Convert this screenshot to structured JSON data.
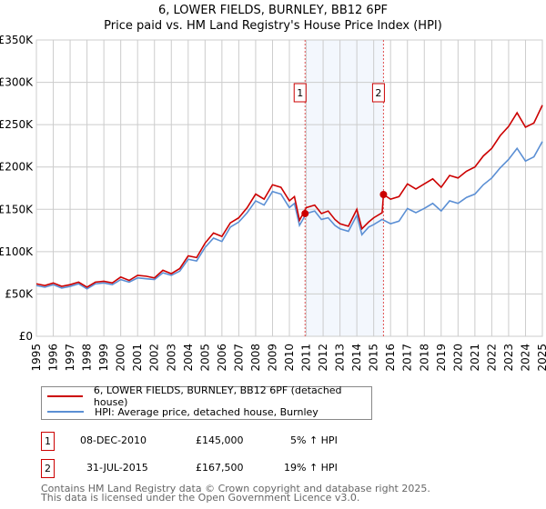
{
  "chart_data": {
    "type": "line",
    "title": "6, LOWER FIELDS, BURNLEY, BB12 6PF",
    "subtitle": "Price paid vs. HM Land Registry's House Price Index (HPI)",
    "xlim": [
      1995,
      2025
    ],
    "ylim": [
      0,
      350000
    ],
    "yticks": [
      {
        "v": 0,
        "label": "£0"
      },
      {
        "v": 50000,
        "label": "£50K"
      },
      {
        "v": 100000,
        "label": "£100K"
      },
      {
        "v": 150000,
        "label": "£150K"
      },
      {
        "v": 200000,
        "label": "£200K"
      },
      {
        "v": 250000,
        "label": "£250K"
      },
      {
        "v": 300000,
        "label": "£300K"
      },
      {
        "v": 350000,
        "label": "£350K"
      }
    ],
    "xticks": [
      "1995",
      "1996",
      "1997",
      "1998",
      "1999",
      "2000",
      "2001",
      "2002",
      "2003",
      "2004",
      "2005",
      "2006",
      "2007",
      "2008",
      "2009",
      "2010",
      "2011",
      "2012",
      "2013",
      "2014",
      "2015",
      "2016",
      "2017",
      "2018",
      "2019",
      "2020",
      "2021",
      "2022",
      "2023",
      "2024",
      "2025"
    ],
    "grid": true,
    "shaded_range": [
      2010.93,
      2015.58
    ],
    "series": [
      {
        "name": "6, LOWER FIELDS, BURNLEY, BB12 6PF (detached house)",
        "color": "#cc0000",
        "points": [
          [
            1995,
            62000
          ],
          [
            1995.5,
            60000
          ],
          [
            1996,
            63000
          ],
          [
            1996.5,
            59000
          ],
          [
            1997,
            61000
          ],
          [
            1997.5,
            64000
          ],
          [
            1998,
            58000
          ],
          [
            1998.5,
            64000
          ],
          [
            1999,
            65000
          ],
          [
            1999.5,
            63000
          ],
          [
            2000,
            70000
          ],
          [
            2000.5,
            66000
          ],
          [
            2001,
            72000
          ],
          [
            2001.5,
            71000
          ],
          [
            2002,
            69000
          ],
          [
            2002.5,
            78000
          ],
          [
            2003,
            74000
          ],
          [
            2003.5,
            80000
          ],
          [
            2004,
            95000
          ],
          [
            2004.5,
            93000
          ],
          [
            2005,
            110000
          ],
          [
            2005.5,
            122000
          ],
          [
            2006,
            118000
          ],
          [
            2006.5,
            134000
          ],
          [
            2007,
            140000
          ],
          [
            2007.5,
            152000
          ],
          [
            2008,
            168000
          ],
          [
            2008.5,
            162000
          ],
          [
            2009,
            179000
          ],
          [
            2009.5,
            176000
          ],
          [
            2010,
            160000
          ],
          [
            2010.3,
            165000
          ],
          [
            2010.6,
            137000
          ],
          [
            2011,
            152000
          ],
          [
            2011.5,
            155000
          ],
          [
            2011.9,
            145000
          ],
          [
            2012.3,
            148000
          ],
          [
            2012.7,
            138000
          ],
          [
            2013,
            133000
          ],
          [
            2013.5,
            130000
          ],
          [
            2014,
            150000
          ],
          [
            2014.3,
            127000
          ],
          [
            2014.7,
            135000
          ],
          [
            2015,
            140000
          ],
          [
            2015.5,
            146000
          ],
          [
            2015.58,
            167500
          ],
          [
            2016,
            162000
          ],
          [
            2016.5,
            165000
          ],
          [
            2017,
            180000
          ],
          [
            2017.5,
            174000
          ],
          [
            2018,
            180000
          ],
          [
            2018.5,
            186000
          ],
          [
            2019,
            176000
          ],
          [
            2019.5,
            190000
          ],
          [
            2020,
            187000
          ],
          [
            2020.5,
            195000
          ],
          [
            2021,
            200000
          ],
          [
            2021.5,
            213000
          ],
          [
            2022,
            222000
          ],
          [
            2022.5,
            237000
          ],
          [
            2023,
            248000
          ],
          [
            2023.5,
            264000
          ],
          [
            2024,
            247000
          ],
          [
            2024.5,
            252000
          ],
          [
            2025,
            273000
          ]
        ]
      },
      {
        "name": "HPI: Average price, detached house, Burnley",
        "color": "#5b8fd4",
        "points": [
          [
            1995,
            60000
          ],
          [
            1995.5,
            58000
          ],
          [
            1996,
            61000
          ],
          [
            1996.5,
            57000
          ],
          [
            1997,
            59000
          ],
          [
            1997.5,
            62000
          ],
          [
            1998,
            56000
          ],
          [
            1998.5,
            62000
          ],
          [
            1999,
            63000
          ],
          [
            1999.5,
            61000
          ],
          [
            2000,
            67000
          ],
          [
            2000.5,
            64000
          ],
          [
            2001,
            69000
          ],
          [
            2001.5,
            68000
          ],
          [
            2002,
            67000
          ],
          [
            2002.5,
            75000
          ],
          [
            2003,
            72000
          ],
          [
            2003.5,
            77000
          ],
          [
            2004,
            91000
          ],
          [
            2004.5,
            89000
          ],
          [
            2005,
            105000
          ],
          [
            2005.5,
            116000
          ],
          [
            2006,
            112000
          ],
          [
            2006.5,
            129000
          ],
          [
            2007,
            135000
          ],
          [
            2007.5,
            146000
          ],
          [
            2008,
            160000
          ],
          [
            2008.5,
            155000
          ],
          [
            2009,
            171000
          ],
          [
            2009.5,
            168000
          ],
          [
            2010,
            152000
          ],
          [
            2010.3,
            157000
          ],
          [
            2010.6,
            131000
          ],
          [
            2011,
            145000
          ],
          [
            2011.5,
            148000
          ],
          [
            2011.9,
            138000
          ],
          [
            2012.3,
            140000
          ],
          [
            2012.7,
            131000
          ],
          [
            2013,
            127000
          ],
          [
            2013.5,
            124000
          ],
          [
            2014,
            143000
          ],
          [
            2014.3,
            120000
          ],
          [
            2014.7,
            129000
          ],
          [
            2015,
            132000
          ],
          [
            2015.5,
            138000
          ],
          [
            2016,
            133000
          ],
          [
            2016.5,
            136000
          ],
          [
            2017,
            151000
          ],
          [
            2017.5,
            146000
          ],
          [
            2018,
            151000
          ],
          [
            2018.5,
            157000
          ],
          [
            2019,
            148000
          ],
          [
            2019.5,
            160000
          ],
          [
            2020,
            157000
          ],
          [
            2020.5,
            164000
          ],
          [
            2021,
            168000
          ],
          [
            2021.5,
            179000
          ],
          [
            2022,
            187000
          ],
          [
            2022.5,
            199000
          ],
          [
            2023,
            209000
          ],
          [
            2023.5,
            222000
          ],
          [
            2024,
            207000
          ],
          [
            2024.5,
            212000
          ],
          [
            2025,
            230000
          ]
        ]
      }
    ],
    "sales": [
      {
        "n": "1",
        "x": 2010.93,
        "y": 145000,
        "date": "08-DEC-2010",
        "price": "£145,000",
        "hpi": "5% ↑ HPI"
      },
      {
        "n": "2",
        "x": 2015.58,
        "y": 167500,
        "date": "31-JUL-2015",
        "price": "£167,500",
        "hpi": "19% ↑ HPI"
      }
    ]
  },
  "footer": {
    "line1": "Contains HM Land Registry data © Crown copyright and database right 2025.",
    "line2": "This data is licensed under the Open Government Licence v3.0."
  }
}
